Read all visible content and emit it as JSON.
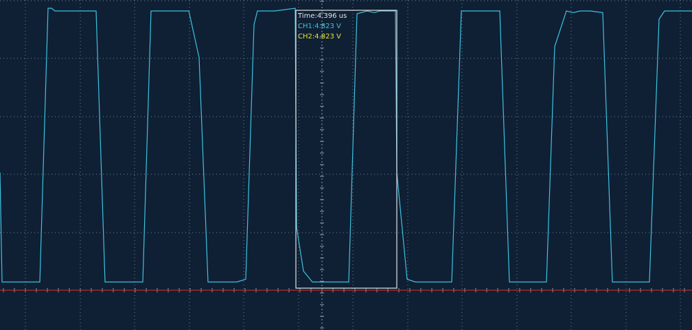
{
  "chart_data": {
    "type": "line",
    "title": "",
    "xlabel": "",
    "ylabel": "",
    "xlim": [
      0,
      1008
    ],
    "ylim": [
      -0.2,
      5.0
    ],
    "grid": true,
    "series": [
      {
        "name": "CH1",
        "color": "#3fc3e2",
        "points": [
          [
            0,
            2.0
          ],
          [
            3,
            0.0
          ],
          [
            58,
            0.0
          ],
          [
            70,
            5.0
          ],
          [
            75,
            5.0
          ],
          [
            80,
            4.95
          ],
          [
            140,
            4.95
          ],
          [
            153,
            0.0
          ],
          [
            208,
            0.0
          ],
          [
            220,
            4.95
          ],
          [
            275,
            4.95
          ],
          [
            290,
            4.1
          ],
          [
            303,
            0.0
          ],
          [
            345,
            0.0
          ],
          [
            358,
            0.05
          ],
          [
            370,
            4.7
          ],
          [
            375,
            4.95
          ],
          [
            400,
            4.95
          ],
          [
            430,
            5.0
          ],
          [
            432,
            1.0
          ],
          [
            442,
            0.2
          ],
          [
            455,
            0.0
          ],
          [
            508,
            0.0
          ],
          [
            520,
            4.9
          ],
          [
            535,
            4.95
          ],
          [
            545,
            4.92
          ],
          [
            553,
            4.95
          ],
          [
            576,
            4.95
          ],
          [
            578,
            2.0
          ],
          [
            593,
            0.05
          ],
          [
            605,
            0.0
          ],
          [
            658,
            0.0
          ],
          [
            672,
            4.95
          ],
          [
            728,
            4.95
          ],
          [
            742,
            0.0
          ],
          [
            796,
            0.0
          ],
          [
            808,
            4.3
          ],
          [
            825,
            4.95
          ],
          [
            835,
            4.92
          ],
          [
            845,
            4.95
          ],
          [
            860,
            4.95
          ],
          [
            878,
            4.92
          ],
          [
            892,
            0.0
          ],
          [
            946,
            0.0
          ],
          [
            960,
            4.8
          ],
          [
            968,
            4.95
          ],
          [
            1008,
            4.95
          ]
        ]
      }
    ],
    "reference_level": 0.0,
    "cursor_window": {
      "x_start": 431,
      "x_end": 578,
      "y_low": -0.15,
      "y_high": 4.95
    },
    "readout": {
      "time": "Time:4.396 us",
      "ch1": "CH1:4.823 V",
      "ch2": "CH2:4.823 V"
    }
  },
  "colors": {
    "background": "#0f2034",
    "grid": "#6f8396",
    "axis": "#8fa2b4",
    "baseline": "#c12828",
    "ch1": "#3fc3e2",
    "ch2": "#e8e32c",
    "cursor": "#e6e6e6"
  }
}
